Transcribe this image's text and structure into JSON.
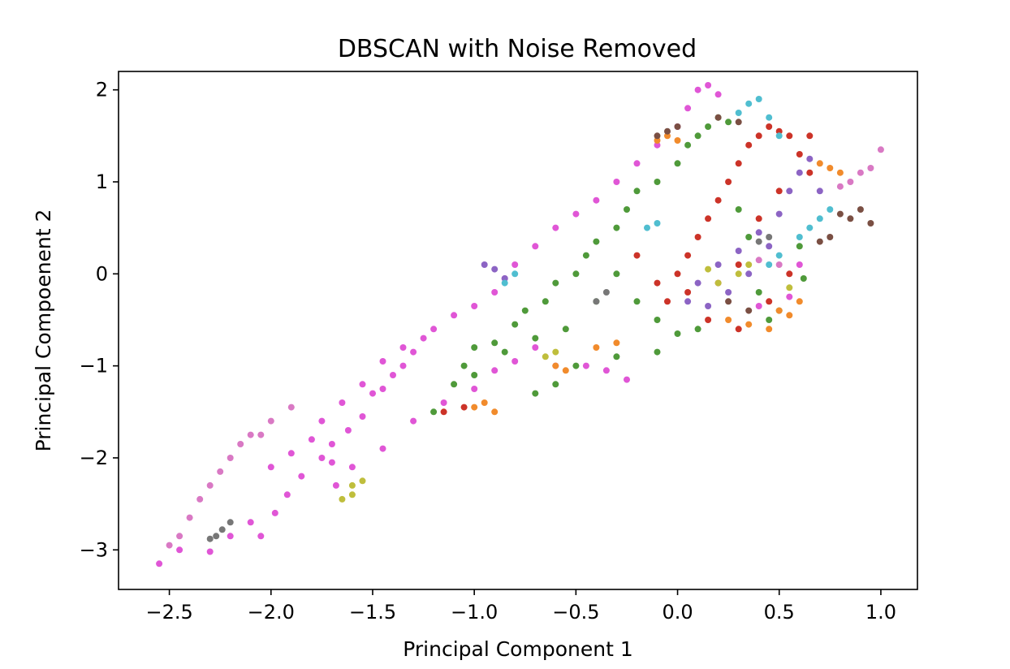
{
  "chart_data": {
    "type": "scatter",
    "title": "DBSCAN with Noise Removed",
    "xlabel": "Principal Component 1",
    "ylabel": "Principal Compoenent 2",
    "xlim": [
      -2.75,
      1.18
    ],
    "ylim": [
      -3.43,
      2.2
    ],
    "xticks": [
      -2.5,
      -2.0,
      -1.5,
      -1.0,
      -0.5,
      0.0,
      0.5,
      1.0
    ],
    "xtick_labels": [
      "−2.5",
      "−2.0",
      "−1.5",
      "−1.0",
      "−0.5",
      "0.0",
      "0.5",
      "1.0"
    ],
    "yticks": [
      -3,
      -2,
      -1,
      0,
      1,
      2
    ],
    "ytick_labels": [
      "−3",
      "−2",
      "−1",
      "0",
      "1",
      "2"
    ],
    "grid": false,
    "legend": "none",
    "series": [
      {
        "color": "#e056d6",
        "points": [
          [
            -2.55,
            -3.15
          ],
          [
            -2.45,
            -3.0
          ],
          [
            -2.3,
            -3.02
          ],
          [
            -2.2,
            -2.85
          ],
          [
            -2.1,
            -2.7
          ],
          [
            -2.05,
            -2.85
          ],
          [
            -1.98,
            -2.6
          ],
          [
            -1.92,
            -2.4
          ],
          [
            -1.85,
            -2.2
          ],
          [
            -1.75,
            -2.0
          ],
          [
            -1.7,
            -1.85
          ],
          [
            -1.62,
            -1.7
          ],
          [
            -1.55,
            -1.55
          ],
          [
            -1.5,
            -1.3
          ],
          [
            -1.45,
            -1.25
          ],
          [
            -1.4,
            -1.1
          ],
          [
            -1.35,
            -1.0
          ],
          [
            -1.3,
            -0.85
          ],
          [
            -1.25,
            -0.7
          ],
          [
            -1.2,
            -0.6
          ],
          [
            -1.1,
            -0.45
          ],
          [
            -1.0,
            -0.35
          ],
          [
            -0.9,
            -0.2
          ],
          [
            -0.85,
            -0.05
          ],
          [
            -0.8,
            0.1
          ],
          [
            -0.7,
            0.3
          ],
          [
            -0.6,
            0.5
          ],
          [
            -0.5,
            0.65
          ],
          [
            -0.4,
            0.8
          ],
          [
            -0.3,
            1.0
          ],
          [
            -0.2,
            1.2
          ],
          [
            -0.1,
            1.4
          ],
          [
            0.0,
            1.6
          ],
          [
            0.05,
            1.8
          ],
          [
            0.1,
            2.0
          ],
          [
            0.15,
            2.05
          ],
          [
            0.2,
            1.95
          ],
          [
            -1.6,
            -2.1
          ],
          [
            -1.45,
            -1.9
          ],
          [
            -1.3,
            -1.6
          ],
          [
            -1.15,
            -1.4
          ],
          [
            -1.0,
            -1.25
          ],
          [
            -0.9,
            -1.05
          ],
          [
            -0.8,
            -0.95
          ],
          [
            -0.7,
            -0.8
          ],
          [
            -0.6,
            -1.0
          ],
          [
            -0.45,
            -1.0
          ],
          [
            -0.35,
            -1.05
          ],
          [
            -0.25,
            -1.15
          ],
          [
            -1.75,
            -1.6
          ],
          [
            -1.65,
            -1.4
          ],
          [
            -1.55,
            -1.2
          ],
          [
            -1.45,
            -0.95
          ],
          [
            -1.35,
            -0.8
          ],
          [
            -2.0,
            -2.1
          ],
          [
            -1.9,
            -1.95
          ],
          [
            -1.8,
            -1.8
          ],
          [
            -1.68,
            -2.3
          ],
          [
            -1.7,
            -2.05
          ],
          [
            0.4,
            -0.35
          ],
          [
            0.55,
            -0.25
          ],
          [
            0.6,
            0.1
          ]
        ]
      },
      {
        "color": "#4f9a3a",
        "points": [
          [
            -1.2,
            -1.5
          ],
          [
            -1.1,
            -1.2
          ],
          [
            -1.05,
            -1.0
          ],
          [
            -1.0,
            -0.8
          ],
          [
            -0.9,
            -0.75
          ],
          [
            -0.8,
            -0.55
          ],
          [
            -0.75,
            -0.4
          ],
          [
            -0.65,
            -0.3
          ],
          [
            -0.6,
            -0.1
          ],
          [
            -0.5,
            0.0
          ],
          [
            -0.45,
            0.2
          ],
          [
            -0.4,
            0.35
          ],
          [
            -0.3,
            0.5
          ],
          [
            -0.25,
            0.7
          ],
          [
            -0.2,
            0.9
          ],
          [
            -0.1,
            1.0
          ],
          [
            0.0,
            1.2
          ],
          [
            0.05,
            1.4
          ],
          [
            0.1,
            1.5
          ],
          [
            0.15,
            1.6
          ],
          [
            0.2,
            1.7
          ],
          [
            0.25,
            1.65
          ],
          [
            -0.3,
            0.0
          ],
          [
            -0.2,
            -0.3
          ],
          [
            -0.1,
            -0.5
          ],
          [
            0.0,
            -0.65
          ],
          [
            0.1,
            -0.6
          ],
          [
            -0.4,
            -0.3
          ],
          [
            -0.55,
            -0.6
          ],
          [
            -0.7,
            -0.7
          ],
          [
            -0.85,
            -0.85
          ],
          [
            -1.0,
            -1.1
          ],
          [
            -0.7,
            -1.3
          ],
          [
            -0.6,
            -1.2
          ],
          [
            -0.5,
            -1.0
          ],
          [
            -0.3,
            -0.9
          ],
          [
            -0.1,
            -0.85
          ],
          [
            0.3,
            0.7
          ],
          [
            0.35,
            0.4
          ],
          [
            0.4,
            -0.2
          ],
          [
            0.45,
            -0.5
          ],
          [
            0.5,
            -0.4
          ],
          [
            0.62,
            -0.05
          ],
          [
            0.6,
            0.3
          ]
        ]
      },
      {
        "color": "#cc3328",
        "points": [
          [
            0.0,
            0.0
          ],
          [
            0.05,
            0.2
          ],
          [
            0.1,
            0.4
          ],
          [
            0.15,
            0.6
          ],
          [
            0.2,
            0.8
          ],
          [
            0.25,
            1.0
          ],
          [
            0.3,
            1.2
          ],
          [
            0.35,
            1.4
          ],
          [
            0.4,
            1.5
          ],
          [
            0.45,
            1.6
          ],
          [
            0.5,
            1.55
          ],
          [
            0.55,
            1.5
          ],
          [
            0.6,
            1.3
          ],
          [
            0.65,
            1.5
          ],
          [
            -0.1,
            -0.1
          ],
          [
            -0.05,
            -0.3
          ],
          [
            0.05,
            -0.2
          ],
          [
            0.2,
            -0.1
          ],
          [
            0.3,
            0.1
          ],
          [
            0.4,
            0.6
          ],
          [
            0.5,
            0.9
          ],
          [
            -0.2,
            0.2
          ],
          [
            0.15,
            -0.5
          ],
          [
            0.3,
            -0.6
          ],
          [
            0.45,
            -0.3
          ],
          [
            0.55,
            0.0
          ],
          [
            0.65,
            1.1
          ],
          [
            -1.15,
            -1.5
          ],
          [
            -1.05,
            -1.45
          ]
        ]
      },
      {
        "color": "#8c64c4",
        "points": [
          [
            0.1,
            -0.1
          ],
          [
            0.2,
            0.1
          ],
          [
            0.3,
            0.25
          ],
          [
            0.4,
            0.45
          ],
          [
            0.5,
            0.65
          ],
          [
            0.55,
            0.9
          ],
          [
            0.6,
            1.1
          ],
          [
            0.65,
            1.25
          ],
          [
            0.7,
            0.9
          ],
          [
            0.45,
            0.3
          ],
          [
            0.35,
            0.0
          ],
          [
            0.25,
            -0.2
          ],
          [
            0.15,
            -0.35
          ],
          [
            0.05,
            -0.3
          ],
          [
            -0.95,
            0.1
          ],
          [
            -0.9,
            0.05
          ],
          [
            -0.85,
            -0.05
          ]
        ]
      },
      {
        "color": "#f18b2c",
        "points": [
          [
            -0.1,
            1.45
          ],
          [
            -0.05,
            1.5
          ],
          [
            0.0,
            1.45
          ],
          [
            0.7,
            1.2
          ],
          [
            0.75,
            1.15
          ],
          [
            0.8,
            1.1
          ],
          [
            0.5,
            -0.4
          ],
          [
            0.55,
            -0.45
          ],
          [
            0.6,
            -0.3
          ],
          [
            0.45,
            -0.6
          ],
          [
            -0.6,
            -1.0
          ],
          [
            -0.55,
            -1.05
          ],
          [
            -0.4,
            -0.8
          ],
          [
            -0.3,
            -0.75
          ],
          [
            -1.0,
            -1.45
          ],
          [
            -0.95,
            -1.4
          ],
          [
            -0.9,
            -1.5
          ],
          [
            0.25,
            -0.5
          ],
          [
            0.35,
            -0.55
          ]
        ]
      },
      {
        "color": "#50bed0",
        "points": [
          [
            0.3,
            1.75
          ],
          [
            0.35,
            1.85
          ],
          [
            0.4,
            1.9
          ],
          [
            0.45,
            1.7
          ],
          [
            0.5,
            1.5
          ],
          [
            0.6,
            0.4
          ],
          [
            0.65,
            0.5
          ],
          [
            0.7,
            0.6
          ],
          [
            0.75,
            0.7
          ],
          [
            0.5,
            0.2
          ],
          [
            0.45,
            0.1
          ],
          [
            -0.85,
            -0.1
          ],
          [
            -0.8,
            0.0
          ],
          [
            -0.15,
            0.5
          ],
          [
            -0.1,
            0.55
          ]
        ]
      },
      {
        "color": "#7a4f43",
        "points": [
          [
            0.8,
            0.65
          ],
          [
            0.85,
            0.6
          ],
          [
            0.9,
            0.7
          ],
          [
            0.95,
            0.55
          ],
          [
            0.75,
            0.4
          ],
          [
            0.7,
            0.35
          ],
          [
            -0.1,
            1.5
          ],
          [
            -0.05,
            1.55
          ],
          [
            0.0,
            1.6
          ],
          [
            0.2,
            1.7
          ],
          [
            0.3,
            1.65
          ],
          [
            0.35,
            -0.4
          ],
          [
            0.25,
            -0.3
          ]
        ]
      },
      {
        "color": "#d979c4",
        "points": [
          [
            -2.5,
            -2.95
          ],
          [
            -2.45,
            -2.85
          ],
          [
            -2.4,
            -2.65
          ],
          [
            -2.35,
            -2.45
          ],
          [
            -2.3,
            -2.3
          ],
          [
            -2.25,
            -2.15
          ],
          [
            -2.2,
            -2.0
          ],
          [
            -2.15,
            -1.85
          ],
          [
            -2.1,
            -1.75
          ],
          [
            -2.05,
            -1.75
          ],
          [
            -2.0,
            -1.6
          ],
          [
            -1.9,
            -1.45
          ],
          [
            0.8,
            0.95
          ],
          [
            0.85,
            1.0
          ],
          [
            0.9,
            1.1
          ],
          [
            0.95,
            1.15
          ],
          [
            1.0,
            1.35
          ],
          [
            0.4,
            0.15
          ],
          [
            0.5,
            0.1
          ]
        ]
      },
      {
        "color": "#777777",
        "points": [
          [
            -2.3,
            -2.88
          ],
          [
            -2.27,
            -2.85
          ],
          [
            -2.24,
            -2.78
          ],
          [
            -2.2,
            -2.7
          ],
          [
            -0.4,
            -0.3
          ],
          [
            -0.35,
            -0.2
          ],
          [
            0.4,
            0.35
          ],
          [
            0.45,
            0.4
          ]
        ]
      },
      {
        "color": "#bfbe3c",
        "points": [
          [
            -1.65,
            -2.45
          ],
          [
            -1.6,
            -2.3
          ],
          [
            -1.55,
            -2.25
          ],
          [
            -1.6,
            -2.4
          ],
          [
            -0.65,
            -0.9
          ],
          [
            -0.6,
            -0.85
          ],
          [
            0.15,
            0.05
          ],
          [
            0.2,
            -0.1
          ],
          [
            0.3,
            0.0
          ],
          [
            0.35,
            0.1
          ],
          [
            0.55,
            -0.15
          ]
        ]
      }
    ]
  }
}
